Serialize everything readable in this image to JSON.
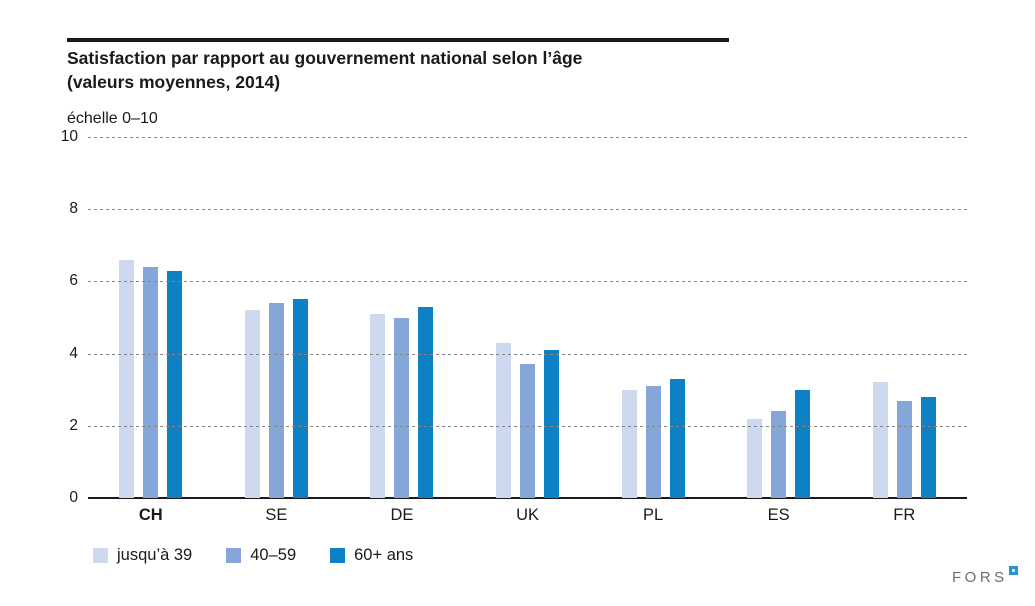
{
  "header": {
    "title_line1": "Satisfaction par rapport au gouvernement national selon l’âge",
    "title_line2": "(valeurs moyennes, 2014)",
    "scale_label": "échelle 0–10"
  },
  "chart_data": {
    "type": "bar",
    "title": "Satisfaction par rapport au gouvernement national selon l’âge (valeurs moyennes, 2014)",
    "ylabel": "échelle 0–10",
    "categories": [
      "CH",
      "SE",
      "DE",
      "UK",
      "PL",
      "ES",
      "FR"
    ],
    "series": [
      {
        "name": "jusqu’à 39",
        "color": "#ccd9ee",
        "values": [
          6.6,
          5.2,
          5.1,
          4.3,
          3.0,
          2.2,
          3.2
        ]
      },
      {
        "name": "40–59",
        "color": "#84a6d8",
        "values": [
          6.4,
          5.4,
          5.0,
          3.7,
          3.1,
          2.4,
          2.7
        ]
      },
      {
        "name": "60+ ans",
        "color": "#0e81c4",
        "values": [
          6.3,
          5.5,
          5.3,
          4.1,
          3.3,
          3.0,
          2.8
        ]
      }
    ],
    "ylim": [
      0,
      10
    ],
    "yticks": [
      0,
      2,
      4,
      6,
      8,
      10
    ],
    "grid": "horizontal-dashed",
    "legend_position": "bottom-left",
    "highlight_category": "CH",
    "grid_color": "#858585",
    "axis_color": "#1a1a1a"
  },
  "footer": {
    "logo_text": "FORS"
  }
}
